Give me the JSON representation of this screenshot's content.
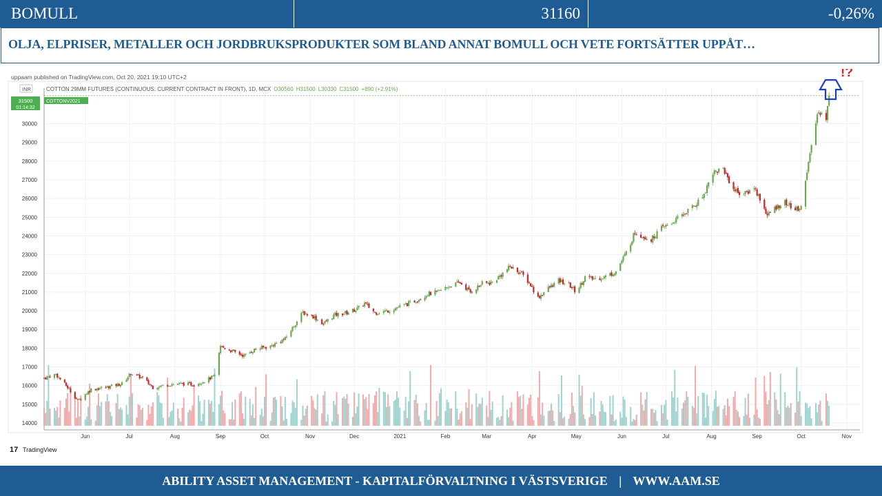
{
  "header": {
    "name": "BOMULL",
    "price": "31160",
    "change": "-0,26%"
  },
  "headline": "OLJA, ELPRISER, METALLER OCH JORDBRUKSPRODUKTER SOM BLAND ANNAT BOMULL OCH VETE FORTSÄTTER UPPÅT…",
  "footer": {
    "company": "ABILITY ASSET MANAGEMENT -  KAPITALFÖRVALTNING I VÄSTSVERIGE",
    "divider": "|",
    "website": "WWW.AAM.SE"
  },
  "colors": {
    "brand": "#1f5c93",
    "up": "#6aa84f",
    "down": "#c62828",
    "vol_up": "#9fd3d0",
    "vol_down": "#f4a9a9",
    "arrow": "#1a3cc8",
    "alert": "#e02020"
  },
  "annotation": {
    "marks": "!?",
    "icon": "up-arrow-icon"
  },
  "chart_data": {
    "type": "candlestick",
    "published": "uppaam published on TradingView.com, Oct 20, 2021 19:10 UTC+2",
    "currency_badge": "INR",
    "info": "COTTON 29MM FUTURES (CONTINUOUS: CURRENT CONTRACT IN FRONT), 1D, MCX",
    "ohlc": {
      "O": "O30560",
      "H": "H31500",
      "L": "L30330",
      "C": "C31500",
      "chg": "+890 (+2.91%)"
    },
    "symbol": "COTTONV2021",
    "last_price": "31500",
    "countdown": "01:14:32",
    "watermark": "TradingView",
    "ylim": [
      13850,
      31900
    ],
    "yticks": [
      "14000",
      "15000",
      "16000",
      "17000",
      "18000",
      "19000",
      "20000",
      "21000",
      "22000",
      "23000",
      "24000",
      "25000",
      "26000",
      "27000",
      "28000",
      "29000",
      "30000"
    ],
    "xticks": [
      "Jun",
      "Jul",
      "Aug",
      "Sep",
      "Oct",
      "Nov",
      "Dec",
      "2021",
      "Feb",
      "Mar",
      "Apr",
      "May",
      "Jun",
      "Jul",
      "Aug",
      "Sep",
      "Oct",
      "Nov"
    ],
    "x_start": "2020-05-04",
    "x_end": "2021-11-10",
    "month_ticks": [
      "2020-06-01",
      "2020-07-01",
      "2020-08-01",
      "2020-09-01",
      "2020-10-01",
      "2020-11-01",
      "2020-12-01",
      "2021-01-01",
      "2021-02-01",
      "2021-03-01",
      "2021-04-01",
      "2021-05-01",
      "2021-06-01",
      "2021-07-01",
      "2021-08-01",
      "2021-09-01",
      "2021-10-01",
      "2021-11-01"
    ],
    "price_path": [
      [
        "2020-05-04",
        16400
      ],
      [
        "2020-05-12",
        16600
      ],
      [
        "2020-05-20",
        15900
      ],
      [
        "2020-05-27",
        15200
      ],
      [
        "2020-06-05",
        15800
      ],
      [
        "2020-06-15",
        15900
      ],
      [
        "2020-06-26",
        16100
      ],
      [
        "2020-07-02",
        16650
      ],
      [
        "2020-07-10",
        16400
      ],
      [
        "2020-07-17",
        15900
      ],
      [
        "2020-07-27",
        16050
      ],
      [
        "2020-08-05",
        16100
      ],
      [
        "2020-08-14",
        16050
      ],
      [
        "2020-08-21",
        16250
      ],
      [
        "2020-08-28",
        16500
      ],
      [
        "2020-09-01",
        18100
      ],
      [
        "2020-09-10",
        17800
      ],
      [
        "2020-09-17",
        17600
      ],
      [
        "2020-09-25",
        17950
      ],
      [
        "2020-10-05",
        18100
      ],
      [
        "2020-10-15",
        18500
      ],
      [
        "2020-10-21",
        19200
      ],
      [
        "2020-10-27",
        19900
      ],
      [
        "2020-11-03",
        19700
      ],
      [
        "2020-11-10",
        19300
      ],
      [
        "2020-11-17",
        19750
      ],
      [
        "2020-11-26",
        19900
      ],
      [
        "2020-12-03",
        20100
      ],
      [
        "2020-12-08",
        20400
      ],
      [
        "2020-12-15",
        19900
      ],
      [
        "2020-12-24",
        20000
      ],
      [
        "2021-01-04",
        20300
      ],
      [
        "2021-01-12",
        20550
      ],
      [
        "2021-01-20",
        20900
      ],
      [
        "2021-01-27",
        21000
      ],
      [
        "2021-02-03",
        21300
      ],
      [
        "2021-02-11",
        21500
      ],
      [
        "2021-02-18",
        21000
      ],
      [
        "2021-02-26",
        21450
      ],
      [
        "2021-03-05",
        21500
      ],
      [
        "2021-03-12",
        22000
      ],
      [
        "2021-03-17",
        22350
      ],
      [
        "2021-03-24",
        22050
      ],
      [
        "2021-03-30",
        21500
      ],
      [
        "2021-04-05",
        20700
      ],
      [
        "2021-04-12",
        21200
      ],
      [
        "2021-04-19",
        21600
      ],
      [
        "2021-04-26",
        21400
      ],
      [
        "2021-05-01",
        21000
      ],
      [
        "2021-05-07",
        21800
      ],
      [
        "2021-05-12",
        21700
      ],
      [
        "2021-05-20",
        21800
      ],
      [
        "2021-05-28",
        22100
      ],
      [
        "2021-06-04",
        23100
      ],
      [
        "2021-06-10",
        24200
      ],
      [
        "2021-06-15",
        24000
      ],
      [
        "2021-06-21",
        23800
      ],
      [
        "2021-06-28",
        24400
      ],
      [
        "2021-07-05",
        24700
      ],
      [
        "2021-07-12",
        25100
      ],
      [
        "2021-07-20",
        25600
      ],
      [
        "2021-07-26",
        26100
      ],
      [
        "2021-08-02",
        27400
      ],
      [
        "2021-08-09",
        27600
      ],
      [
        "2021-08-16",
        26500
      ],
      [
        "2021-08-23",
        26200
      ],
      [
        "2021-08-30",
        26600
      ],
      [
        "2021-09-03",
        26000
      ],
      [
        "2021-09-08",
        25100
      ],
      [
        "2021-09-15",
        25600
      ],
      [
        "2021-09-20",
        25800
      ],
      [
        "2021-09-27",
        25400
      ],
      [
        "2021-10-01",
        25500
      ],
      [
        "2021-10-04",
        27100
      ],
      [
        "2021-10-08",
        28700
      ],
      [
        "2021-10-12",
        30500
      ],
      [
        "2021-10-15",
        30700
      ],
      [
        "2021-10-18",
        30300
      ],
      [
        "2021-10-20",
        31500
      ]
    ]
  }
}
